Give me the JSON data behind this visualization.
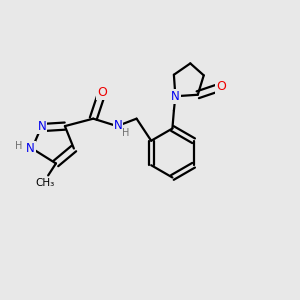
{
  "bg_color": "#e8e8e8",
  "bond_color": "#000000",
  "bond_width": 1.6,
  "N_color": "#0000ee",
  "O_color": "#ee0000",
  "H_color": "#707070",
  "font_size": 8.5,
  "figsize": [
    3.0,
    3.0
  ],
  "dpi": 100,
  "xlim": [
    0.0,
    1.0
  ],
  "ylim": [
    0.15,
    0.95
  ]
}
